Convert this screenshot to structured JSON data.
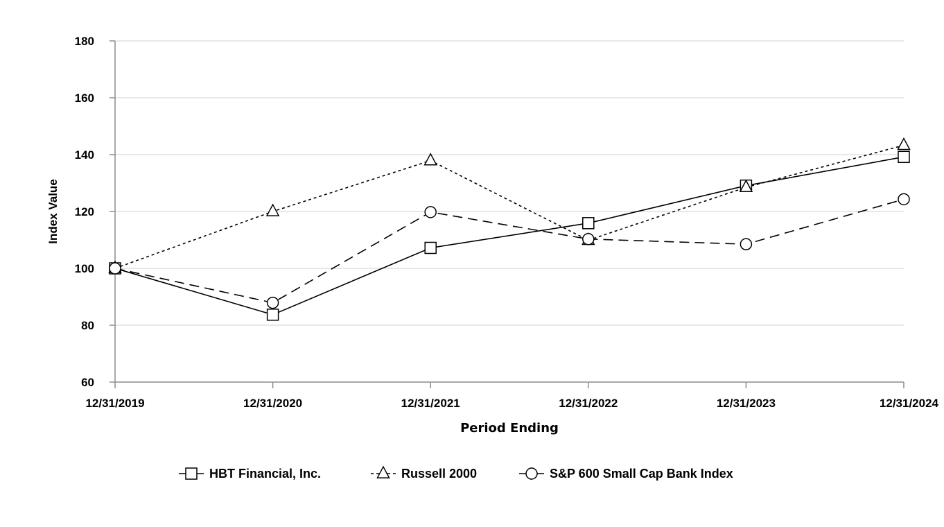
{
  "chart_data": {
    "type": "line",
    "title": "",
    "xlabel": "Period Ending",
    "ylabel": "Index Value",
    "categories": [
      "12/31/2019",
      "12/31/2020",
      "12/31/2021",
      "12/31/2022",
      "12/31/2023",
      "12/31/2024"
    ],
    "ylim": [
      60,
      180
    ],
    "yticks": [
      "60",
      "80",
      "100",
      "120",
      "140",
      "160",
      "180"
    ],
    "grid": true,
    "legend_position": "bottom",
    "series": [
      {
        "name": "HBT Financial, Inc.",
        "marker": "square",
        "line_style": "solid",
        "values": [
          100.0,
          83.7,
          107.2,
          115.9,
          129.1,
          139.2
        ]
      },
      {
        "name": "Russell 2000",
        "marker": "triangle",
        "line_style": "dotted",
        "values": [
          100.0,
          120.0,
          137.9,
          109.9,
          128.5,
          143.3
        ]
      },
      {
        "name": "S&P 600 Small Cap Bank Index",
        "marker": "circle",
        "line_style": "dashed",
        "values": [
          100.0,
          87.9,
          119.8,
          110.3,
          108.5,
          124.3
        ]
      }
    ]
  }
}
